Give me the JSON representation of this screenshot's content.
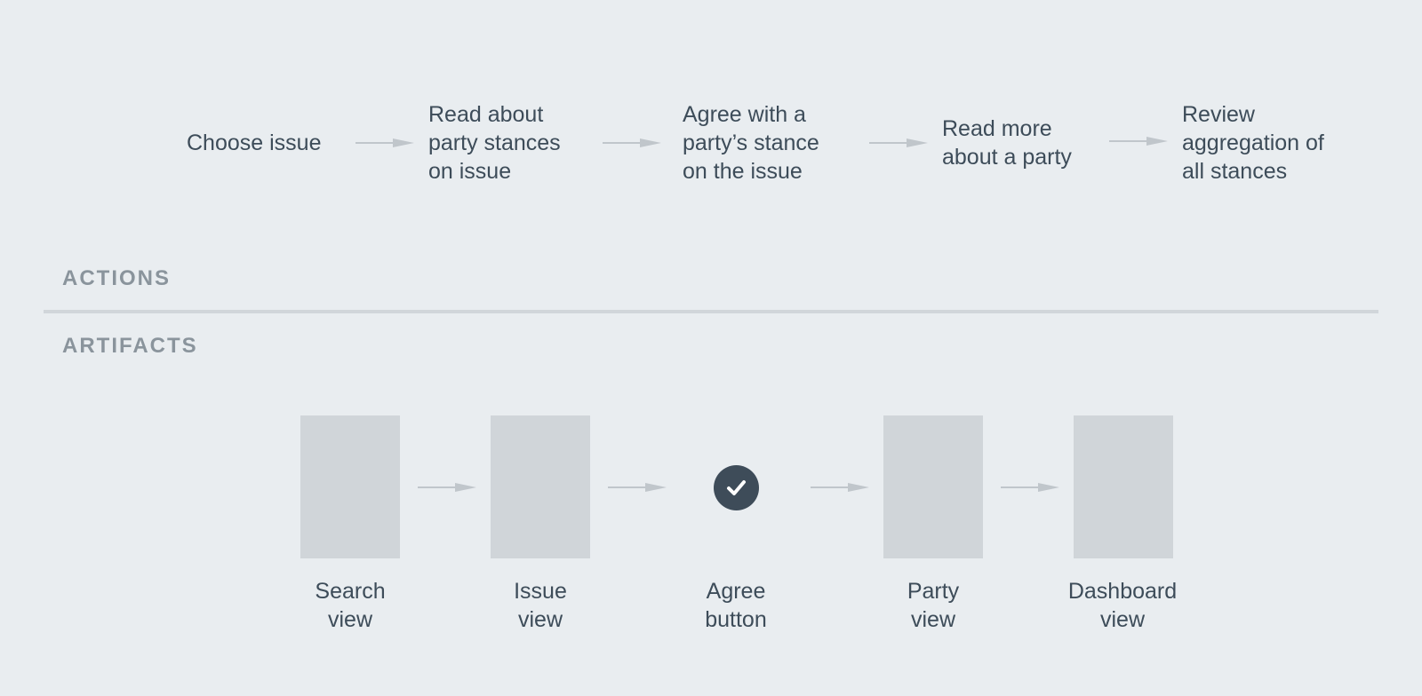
{
  "actions": {
    "heading": "ACTIONS",
    "steps": [
      {
        "label": "Choose issue"
      },
      {
        "label": "Read about\nparty stances\non issue"
      },
      {
        "label": "Agree with a\nparty’s stance\non the issue"
      },
      {
        "label": "Read more\nabout a party"
      },
      {
        "label": "Review\naggregation of\nall stances"
      }
    ]
  },
  "artifacts": {
    "heading": "ARTIFACTS",
    "items": [
      {
        "label": "Search\nview",
        "kind": "screen"
      },
      {
        "label": "Issue\nview",
        "kind": "screen"
      },
      {
        "label": "Agree\nbutton",
        "kind": "check-icon"
      },
      {
        "label": "Party\nview",
        "kind": "screen"
      },
      {
        "label": "Dashboard\nview",
        "kind": "screen"
      }
    ]
  },
  "colors": {
    "background": "#e9edf0",
    "text": "#3d4c59",
    "heading": "#8a949c",
    "arrow": "#c0c6cb",
    "placeholder": "#d0d5d9",
    "icon": "#3e4c59"
  }
}
